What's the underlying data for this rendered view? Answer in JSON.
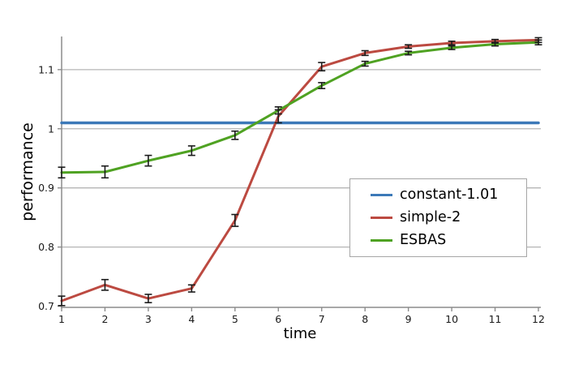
{
  "chart_data": {
    "type": "line",
    "title": "",
    "xlabel": "time",
    "ylabel": "performance",
    "x": [
      1,
      2,
      3,
      4,
      5,
      6,
      7,
      8,
      9,
      10,
      11,
      12
    ],
    "xlim": [
      1,
      12
    ],
    "ylim": [
      0.698,
      1.156
    ],
    "xticks": [
      1,
      2,
      3,
      4,
      5,
      6,
      7,
      8,
      9,
      10,
      11,
      12
    ],
    "xtick_labels": [
      "1",
      "2",
      "3",
      "4",
      "5",
      "6",
      "7",
      "8",
      "9",
      "10",
      "11",
      "12"
    ],
    "yticks": [
      0.7,
      0.8,
      0.9,
      1.0,
      1.1
    ],
    "ytick_labels": [
      "0.7",
      "0.8",
      "0.9",
      "1",
      "1.1"
    ],
    "grid": "horizontal-only",
    "gridline_yticks": [
      0.8,
      0.9,
      1.0,
      1.1
    ],
    "series": [
      {
        "name": "constant-1.01",
        "color": "#3c79b8",
        "line_width": 3.5,
        "values": [
          1.01,
          1.01,
          1.01,
          1.01,
          1.01,
          1.01,
          1.01,
          1.01,
          1.01,
          1.01,
          1.01,
          1.01
        ],
        "errors": [
          0,
          0,
          0,
          0,
          0,
          0,
          0,
          0,
          0,
          0,
          0,
          0
        ]
      },
      {
        "name": "simple-2",
        "color": "#bc4a41",
        "line_width": 3,
        "values": [
          0.709,
          0.736,
          0.713,
          0.73,
          0.845,
          1.021,
          1.105,
          1.128,
          1.139,
          1.145,
          1.148,
          1.15
        ],
        "errors": [
          0.008,
          0.009,
          0.007,
          0.006,
          0.01,
          0.011,
          0.007,
          0.004,
          0.003,
          0.003,
          0.003,
          0.004
        ]
      },
      {
        "name": "ESBAS",
        "color": "#4fa222",
        "line_width": 3,
        "values": [
          0.926,
          0.927,
          0.946,
          0.963,
          0.989,
          1.031,
          1.073,
          1.11,
          1.128,
          1.137,
          1.143,
          1.146
        ],
        "errors": [
          0.009,
          0.01,
          0.009,
          0.008,
          0.007,
          0.006,
          0.005,
          0.004,
          0.003,
          0.003,
          0.003,
          0.004
        ]
      }
    ],
    "legend": {
      "position": "center-right",
      "entries": [
        "constant-1.01",
        "simple-2",
        "ESBAS"
      ]
    },
    "colors": {
      "gridline": "#b5b5b5",
      "axis": "#8c8c8c",
      "tick_label": "#1a1a1a",
      "error_bar": "#1c1c1c",
      "background": "#ffffff"
    }
  }
}
